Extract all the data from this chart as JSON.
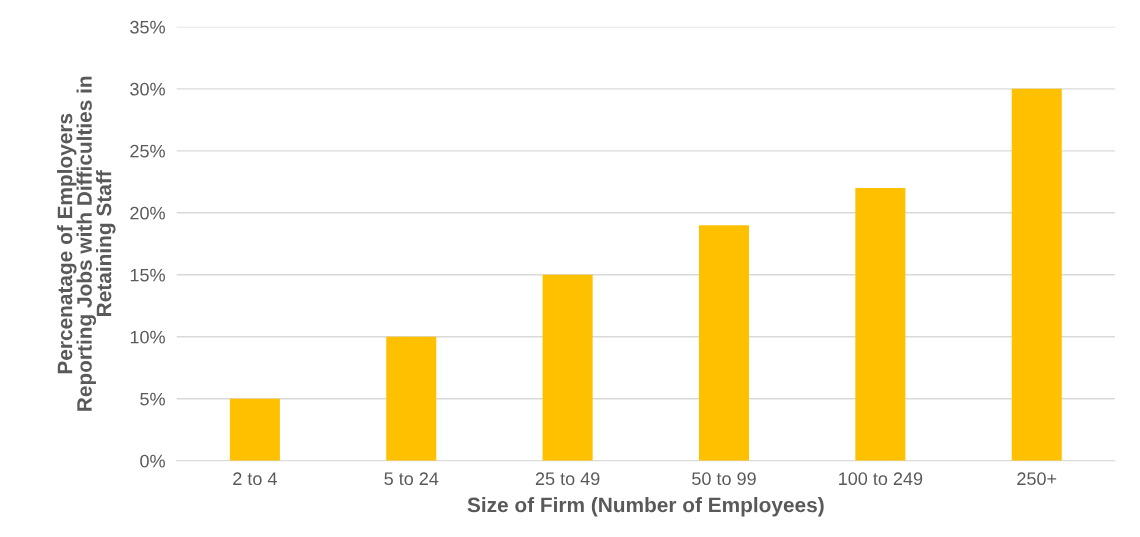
{
  "chart_data": {
    "type": "bar",
    "xlabel": "Size of Firm (Number of Employees)",
    "ylabel": "Percenatage of Employers\nReporting Jobs with Difficulties in\nRetaining Staff",
    "categories": [
      "2 to 4",
      "5 to 24",
      "25 to 49",
      "50 to 99",
      "100 to 249",
      "250+"
    ],
    "values": [
      5,
      10,
      15,
      19,
      22,
      30
    ],
    "color": "#ffc000",
    "ylim": [
      0,
      35
    ],
    "yticks": [
      {
        "value": 0,
        "label": "0%"
      },
      {
        "value": 5,
        "label": "5%"
      },
      {
        "value": 10,
        "label": "10%"
      },
      {
        "value": 15,
        "label": "15%"
      },
      {
        "value": 20,
        "label": "20%"
      },
      {
        "value": 25,
        "label": "25%"
      },
      {
        "value": 30,
        "label": "30%"
      },
      {
        "value": 35,
        "label": "35%"
      }
    ],
    "grid": "y",
    "legend": false
  }
}
